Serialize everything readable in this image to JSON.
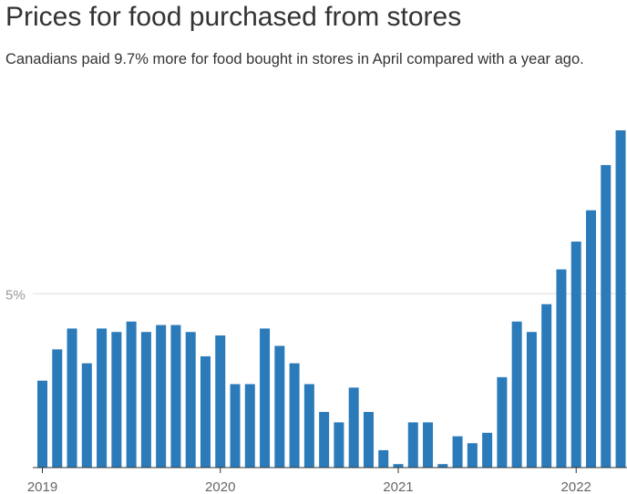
{
  "chart_data": {
    "type": "bar",
    "title": "Prices for food purchased from stores",
    "subtitle": "Canadians paid 9.7% more for food bought in stores in April compared with a year ago.",
    "xlabel": "",
    "ylabel": "",
    "ylim": [
      0,
      9.7
    ],
    "grid": true,
    "bar_color": "#2b7bba",
    "y_ticks": [
      {
        "value": 5,
        "label": "5%"
      }
    ],
    "x_ticks": [
      {
        "index": 0,
        "label": "2019"
      },
      {
        "index": 12,
        "label": "2020"
      },
      {
        "index": 24,
        "label": "2021"
      },
      {
        "index": 36,
        "label": "2022"
      }
    ],
    "categories": [
      "2019-01",
      "2019-02",
      "2019-03",
      "2019-04",
      "2019-05",
      "2019-06",
      "2019-07",
      "2019-08",
      "2019-09",
      "2019-10",
      "2019-11",
      "2019-12",
      "2020-01",
      "2020-02",
      "2020-03",
      "2020-04",
      "2020-05",
      "2020-06",
      "2020-07",
      "2020-08",
      "2020-09",
      "2020-10",
      "2020-11",
      "2020-12",
      "2021-01",
      "2021-02",
      "2021-03",
      "2021-04",
      "2021-05",
      "2021-06",
      "2021-07",
      "2021-08",
      "2021-09",
      "2021-10",
      "2021-11",
      "2021-12",
      "2022-01",
      "2022-02",
      "2022-03",
      "2022-04"
    ],
    "values": [
      2.5,
      3.4,
      4.0,
      3.0,
      4.0,
      3.9,
      4.2,
      3.9,
      4.1,
      4.1,
      3.9,
      3.2,
      3.8,
      2.4,
      2.4,
      4.0,
      3.5,
      3.0,
      2.4,
      1.6,
      1.3,
      2.3,
      1.6,
      0.5,
      0.1,
      1.3,
      1.3,
      0.1,
      0.9,
      0.7,
      1.0,
      2.6,
      4.2,
      3.9,
      4.7,
      5.7,
      6.5,
      7.4,
      8.7,
      9.7
    ]
  }
}
